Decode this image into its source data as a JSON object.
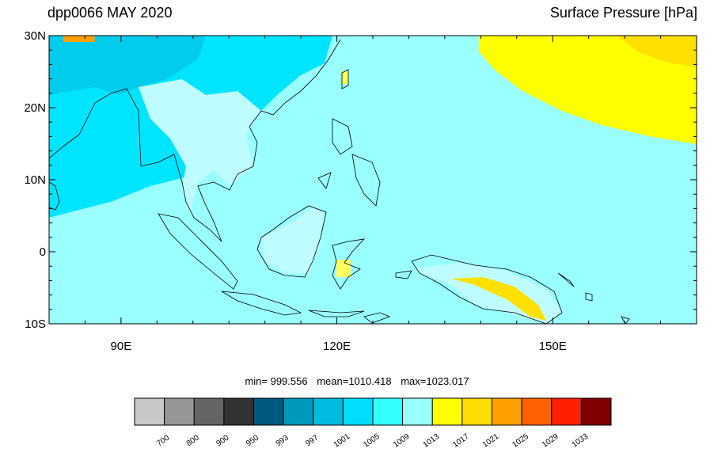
{
  "header": {
    "left_title": "dpp0066 MAY 2020",
    "right_title": "Surface Pressure [hPa]"
  },
  "map": {
    "lon_range": [
      80,
      170
    ],
    "lat_range": [
      -10,
      30
    ],
    "lat_ticks": [
      {
        "value": 30,
        "label": "30N"
      },
      {
        "value": 20,
        "label": "20N"
      },
      {
        "value": 10,
        "label": "10N"
      },
      {
        "value": 0,
        "label": "0"
      },
      {
        "value": -10,
        "label": "10S"
      }
    ],
    "lon_ticks": [
      {
        "value": 90,
        "label": "90E"
      },
      {
        "value": 120,
        "label": "120E"
      },
      {
        "value": 150,
        "label": "150E"
      }
    ],
    "ocean_color": "#99ffff",
    "low_color": "#00e5ff",
    "mid_color": "#00ccee",
    "high_color": "#ffff00",
    "higher_color": "#ffe000"
  },
  "stats": {
    "min": "min= 999.556",
    "mean": "mean=1010.418",
    "max": "max=1023.017"
  },
  "colorbar": {
    "labels": [
      "700",
      "800",
      "900",
      "950",
      "993",
      "997",
      "1001",
      "1005",
      "1009",
      "1013",
      "1017",
      "1021",
      "1025",
      "1029",
      "1033"
    ],
    "colors": [
      "#c8c8c8",
      "#969696",
      "#646464",
      "#323232",
      "#005a80",
      "#0099bb",
      "#00bbdd",
      "#00ddff",
      "#33ffff",
      "#99ffff",
      "#ffff00",
      "#ffdd00",
      "#ffa000",
      "#ff6000",
      "#ff2000",
      "#800000"
    ]
  }
}
